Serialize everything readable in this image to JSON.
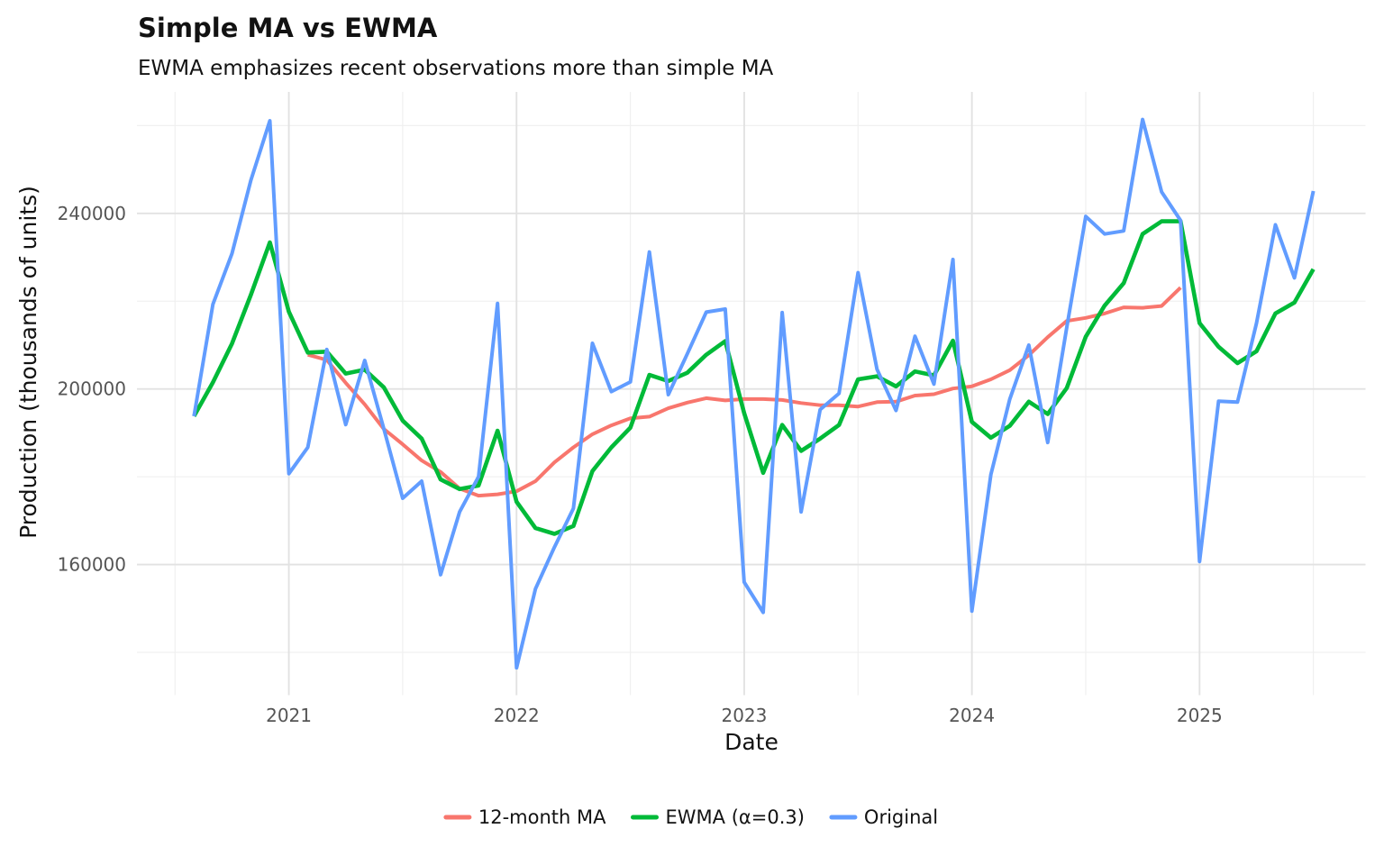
{
  "chart_data": {
    "type": "line",
    "title": "Simple MA vs EWMA",
    "subtitle": "EWMA emphasizes recent observations more than simple MA",
    "xlabel": "Date",
    "ylabel": "Production (thousands of units)",
    "grid": true,
    "legend_position": "bottom",
    "ylim": [
      130300,
      267600
    ],
    "months": [
      "2020-08",
      "2020-09",
      "2020-10",
      "2020-11",
      "2020-12",
      "2021-01",
      "2021-02",
      "2021-03",
      "2021-04",
      "2021-05",
      "2021-06",
      "2021-07",
      "2021-08",
      "2021-09",
      "2021-10",
      "2021-11",
      "2021-12",
      "2022-01",
      "2022-02",
      "2022-03",
      "2022-04",
      "2022-05",
      "2022-06",
      "2022-07",
      "2022-08",
      "2022-09",
      "2022-10",
      "2022-11",
      "2022-12",
      "2023-01",
      "2023-02",
      "2023-03",
      "2023-04",
      "2023-05",
      "2023-06",
      "2023-07",
      "2023-08",
      "2023-09",
      "2023-10",
      "2023-11",
      "2023-12",
      "2024-01",
      "2024-02",
      "2024-03",
      "2024-04",
      "2024-05",
      "2024-06",
      "2024-07",
      "2024-08",
      "2024-09",
      "2024-10",
      "2024-11",
      "2024-12",
      "2025-01",
      "2025-02",
      "2025-03",
      "2025-04",
      "2025-05",
      "2025-06",
      "2025-07"
    ],
    "x_major_ticks": [
      {
        "label": "2021",
        "month": "2021-01"
      },
      {
        "label": "2022",
        "month": "2022-01"
      },
      {
        "label": "2023",
        "month": "2023-01"
      },
      {
        "label": "2024",
        "month": "2024-01"
      },
      {
        "label": "2025",
        "month": "2025-01"
      }
    ],
    "x_minor_tick_months": [
      "2020-07",
      "2021-07",
      "2022-07",
      "2023-07",
      "2024-07",
      "2025-07"
    ],
    "y_major_ticks": [
      {
        "label": "160000",
        "value": 160000
      },
      {
        "label": "200000",
        "value": 200000
      },
      {
        "label": "240000",
        "value": 240000
      }
    ],
    "y_minor_tick_values": [
      140000,
      180000,
      220000,
      260000
    ],
    "series": [
      {
        "key": "ma12",
        "name": "12-month MA",
        "color": "#F8766D",
        "start_month": "2021-02",
        "values": [
          207800,
          206600,
          201400,
          196500,
          190900,
          187400,
          183700,
          181100,
          177300,
          175700,
          176000,
          176700,
          179000,
          183300,
          186700,
          189700,
          191700,
          193300,
          193700,
          195600,
          196900,
          197900,
          197400,
          197700,
          197700,
          197500,
          196800,
          196300,
          196300,
          196000,
          197000,
          197100,
          198500,
          198800,
          200100,
          200600,
          202200,
          204300,
          207700,
          211800,
          215500,
          216200,
          217200,
          218600,
          218500,
          218900,
          223100
        ]
      },
      {
        "key": "ewma",
        "name": "EWMA (α=0.3)",
        "color": "#00BA38",
        "start_month": "2020-08",
        "values": [
          193800,
          201500,
          210300,
          221500,
          233400,
          217600,
          208300,
          208500,
          203500,
          204400,
          200400,
          192800,
          188700,
          179400,
          177200,
          178000,
          190500,
          174300,
          168300,
          167000,
          168800,
          181300,
          186700,
          191200,
          203200,
          201800,
          203700,
          207800,
          210900,
          194500,
          180900,
          191800,
          185900,
          188700,
          191800,
          202200,
          202900,
          200600,
          204000,
          203100,
          211000,
          192500,
          188900,
          191600,
          197100,
          194300,
          200200,
          211900,
          219000,
          224100,
          235300,
          238200,
          238200,
          215000,
          209600,
          205900,
          208600,
          217200,
          219700,
          227300
        ]
      },
      {
        "key": "original",
        "name": "Original",
        "color": "#619CFF",
        "start_month": "2020-08",
        "values": [
          193800,
          219300,
          230800,
          247600,
          261100,
          180700,
          186700,
          209000,
          191900,
          206500,
          191000,
          175100,
          179000,
          157700,
          172000,
          180000,
          219500,
          136500,
          154500,
          164000,
          172800,
          210400,
          199400,
          201600,
          231200,
          198700,
          208000,
          217500,
          218200,
          156000,
          149100,
          217400,
          172000,
          195300,
          199000,
          226500,
          204500,
          195100,
          212000,
          201100,
          229500,
          149400,
          180500,
          197700,
          210000,
          187800,
          214000,
          239300,
          235300,
          236000,
          261400,
          244900,
          238400,
          160700,
          197200,
          197000,
          215000,
          237400,
          225300,
          245100
        ]
      }
    ]
  }
}
